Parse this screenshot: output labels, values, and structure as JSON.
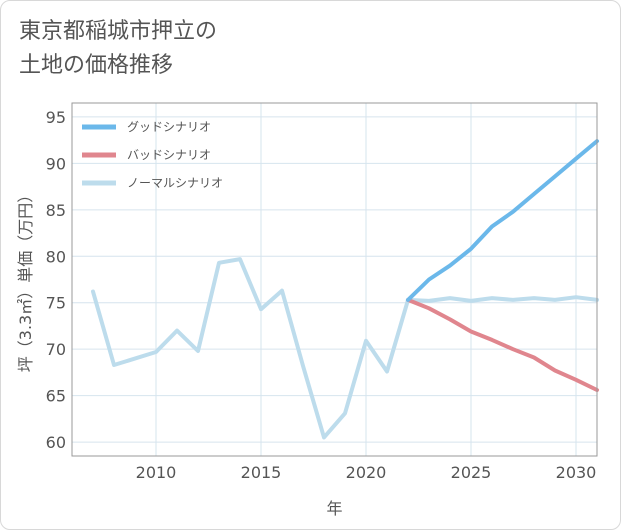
{
  "page": {
    "title": "東京都稲城市押立の\n土地の価格推移"
  },
  "chart_data": {
    "type": "line",
    "xlabel": "年",
    "ylabel": "坪（3.3㎡）単価（万円）",
    "xlim": [
      2006,
      2031
    ],
    "ylim": [
      58.5,
      96.5
    ],
    "xticks": [
      2010,
      2015,
      2020,
      2025,
      2030
    ],
    "yticks": [
      60,
      65,
      70,
      75,
      80,
      85,
      90,
      95
    ],
    "grid": true,
    "legend_position": "top-left",
    "series": [
      {
        "name": "グッドシナリオ",
        "color": "#6bb8ea",
        "x": [
          2022,
          2023,
          2024,
          2025,
          2026,
          2027,
          2028,
          2029,
          2030,
          2031
        ],
        "y": [
          75.3,
          77.5,
          79.0,
          80.8,
          83.2,
          84.8,
          86.7,
          88.6,
          90.5,
          92.4
        ]
      },
      {
        "name": "バッドシナリオ",
        "color": "#e0868e",
        "x": [
          2022,
          2023,
          2024,
          2025,
          2026,
          2027,
          2028,
          2029,
          2030,
          2031
        ],
        "y": [
          75.3,
          74.4,
          73.2,
          71.9,
          71.0,
          70.0,
          69.1,
          67.7,
          66.7,
          65.6
        ]
      },
      {
        "name": "ノーマルシナリオ",
        "color": "#bddcec",
        "x": [
          2007,
          2008,
          2010,
          2011,
          2012,
          2013,
          2014,
          2015,
          2016,
          2017,
          2018,
          2019,
          2020,
          2021,
          2022,
          2023,
          2024,
          2025,
          2026,
          2027,
          2028,
          2029,
          2030,
          2031
        ],
        "y": [
          76.2,
          68.3,
          69.7,
          72.0,
          69.8,
          79.3,
          79.7,
          74.3,
          76.3,
          68.2,
          60.5,
          63.1,
          70.9,
          67.6,
          75.3,
          75.2,
          75.5,
          75.2,
          75.5,
          75.3,
          75.5,
          75.3,
          75.6,
          75.3
        ]
      }
    ]
  }
}
